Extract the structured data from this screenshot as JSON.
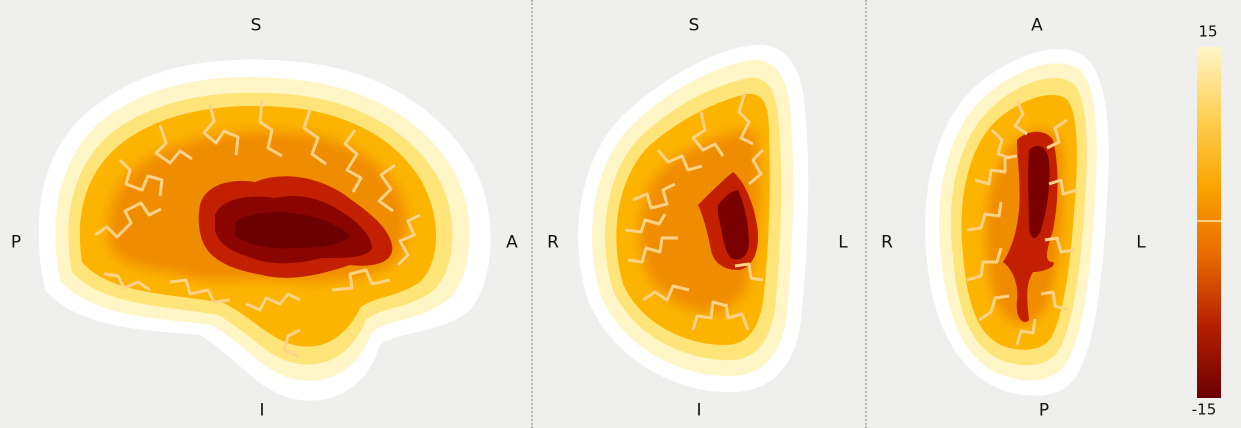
{
  "views": [
    {
      "name": "sagittal",
      "labels": {
        "top": "S",
        "bottom": "I",
        "left": "P",
        "right": "A"
      }
    },
    {
      "name": "coronal",
      "labels": {
        "top": "S",
        "bottom": "I",
        "left": "R",
        "right": "L"
      }
    },
    {
      "name": "axial",
      "labels": {
        "top": "A",
        "bottom": "P",
        "left": "R",
        "right": "L"
      }
    }
  ],
  "colorbar": {
    "max_label": "15",
    "min_label": "-15",
    "colormap": "cold-hot (black-red-orange-yellow-white)",
    "colors": [
      "#6b0000",
      "#b51d00",
      "#e86800",
      "#fca400",
      "#ffd055",
      "#fff6c8"
    ]
  }
}
